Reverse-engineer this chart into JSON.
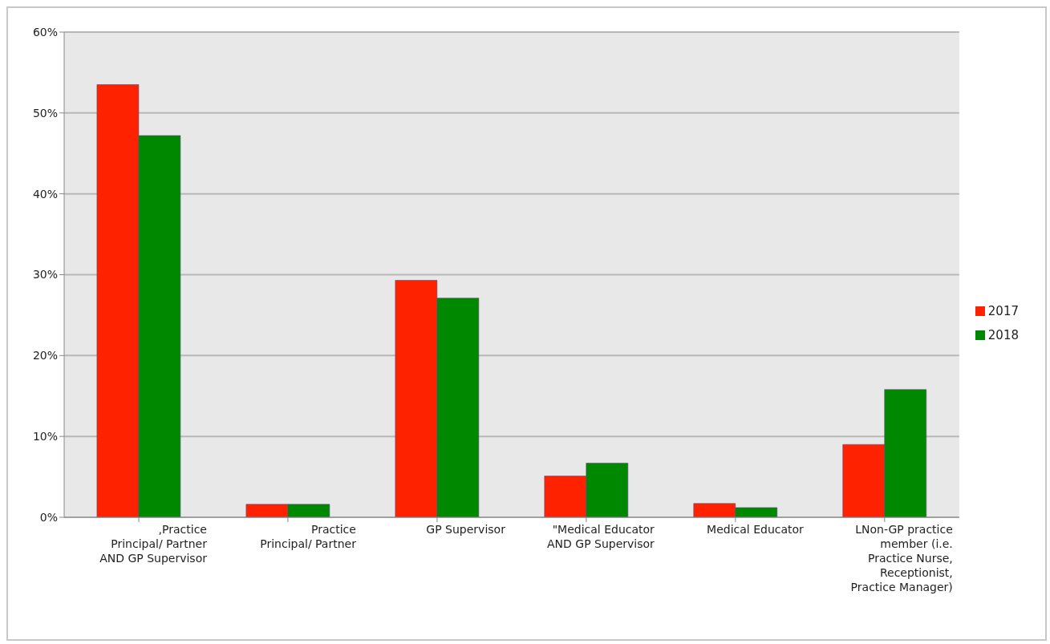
{
  "chart_data": {
    "type": "bar",
    "categories": [
      ",Practice Principal/ Partner AND GP Supervisor",
      "Practice Principal/ Partner",
      "GP Supervisor",
      "\"Medical Educator AND GP Supervisor",
      "Medical Educator",
      "LNon-GP practice member (i.e. Practice Nurse, Receptionist, Practice Manager)"
    ],
    "series": [
      {
        "name": "2017",
        "color": "#ff2200",
        "values": [
          53.5,
          1.6,
          29.3,
          5.1,
          1.7,
          9.0
        ]
      },
      {
        "name": "2018",
        "color": "#008800",
        "values": [
          47.2,
          1.6,
          27.1,
          6.7,
          1.2,
          15.8
        ]
      }
    ],
    "ylim": [
      0,
      60
    ],
    "yticks": [
      {
        "value": 0,
        "label": "0%"
      },
      {
        "value": 10,
        "label": "10%"
      },
      {
        "value": 20,
        "label": "20%"
      },
      {
        "value": 30,
        "label": "30%"
      },
      {
        "value": 40,
        "label": "40%"
      },
      {
        "value": 50,
        "label": "50%"
      },
      {
        "value": 60,
        "label": "60%"
      }
    ],
    "grid": "y",
    "legend": "right"
  }
}
